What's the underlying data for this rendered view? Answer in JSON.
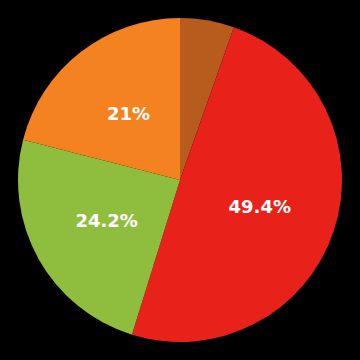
{
  "chart_data": {
    "type": "pie",
    "values": [
      5.4,
      49.4,
      24.2,
      21.0
    ],
    "colors": [
      "#b85c1e",
      "#e8211a",
      "#8fbe3f",
      "#f58220"
    ],
    "data_labels": true,
    "value_labels": [
      null,
      "49.4%",
      "24.2%",
      "21%"
    ]
  }
}
